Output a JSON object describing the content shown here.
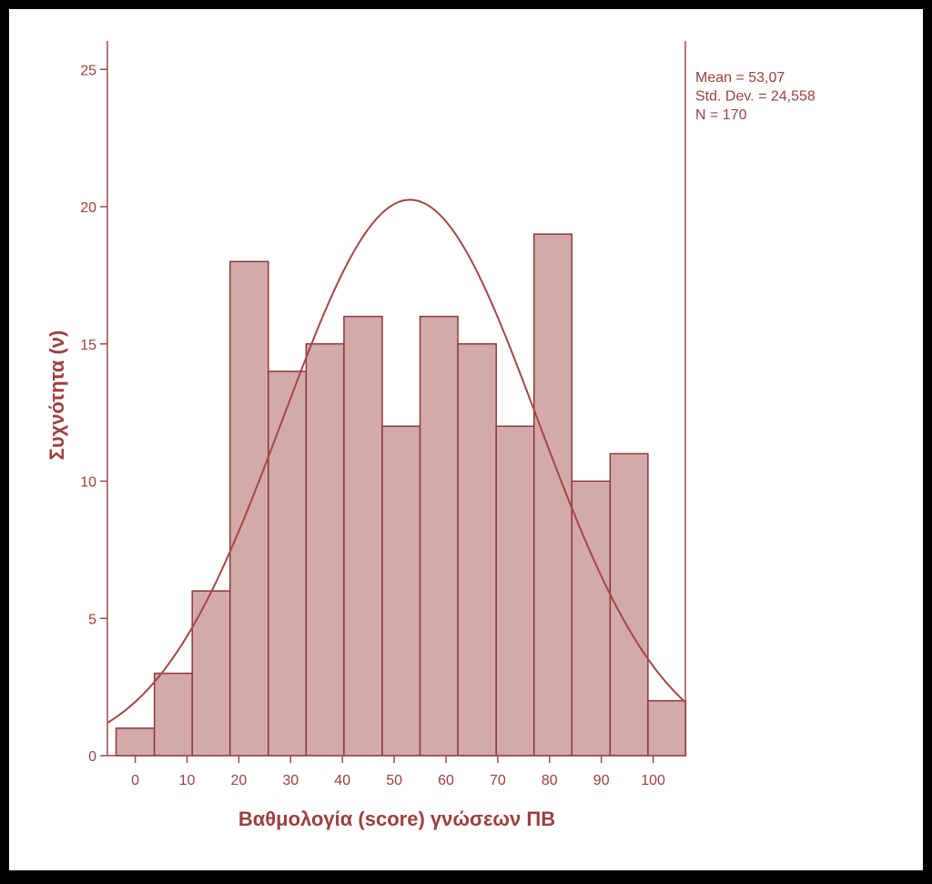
{
  "chart_data": {
    "type": "bar",
    "subtype": "histogram",
    "xlabel": "Βαθμολογία (score) γνώσεων ΠΒ",
    "ylabel": "Συχνότητα (ν)",
    "bin_width": 7.333,
    "bins": [
      {
        "start": -3.7,
        "end": 3.7,
        "count": 1
      },
      {
        "start": 3.7,
        "end": 11.0,
        "count": 3
      },
      {
        "start": 11.0,
        "end": 18.3,
        "count": 6
      },
      {
        "start": 18.3,
        "end": 25.7,
        "count": 18
      },
      {
        "start": 25.7,
        "end": 33.0,
        "count": 14
      },
      {
        "start": 33.0,
        "end": 40.3,
        "count": 15
      },
      {
        "start": 40.3,
        "end": 47.7,
        "count": 16
      },
      {
        "start": 47.7,
        "end": 55.0,
        "count": 12
      },
      {
        "start": 55.0,
        "end": 62.3,
        "count": 16
      },
      {
        "start": 62.3,
        "end": 69.7,
        "count": 15
      },
      {
        "start": 69.7,
        "end": 77.0,
        "count": 12
      },
      {
        "start": 77.0,
        "end": 84.3,
        "count": 19
      },
      {
        "start": 84.3,
        "end": 91.7,
        "count": 10
      },
      {
        "start": 91.7,
        "end": 99.0,
        "count": 11
      },
      {
        "start": 99.0,
        "end": 106.3,
        "count": 2
      }
    ],
    "xlim": [
      -5.5,
      106.5
    ],
    "ylim": [
      0,
      26
    ],
    "xticks": [
      "0",
      "10",
      "20",
      "30",
      "40",
      "50",
      "60",
      "70",
      "80",
      "90",
      "100"
    ],
    "xtick_values": [
      0,
      10,
      20,
      30,
      40,
      50,
      60,
      70,
      80,
      90,
      100
    ],
    "yticks": [
      "0",
      "5",
      "10",
      "15",
      "20",
      "25"
    ],
    "ytick_values": [
      0,
      5,
      10,
      15,
      20,
      25
    ],
    "normal_curve": {
      "mean": 53.07,
      "sd": 24.558,
      "n": 170
    },
    "stats": [
      "Mean = 53,07",
      "Std. Dev. = 24,558",
      "N = 170"
    ],
    "colors": {
      "bar_fill": "#d4a9a9",
      "bar_stroke": "#8c3a3a",
      "axis": "#9c4a4a",
      "text": "#9c4040",
      "curve": "#a04848",
      "background": "#ffffff",
      "frame": "#000000"
    },
    "grid": false
  }
}
